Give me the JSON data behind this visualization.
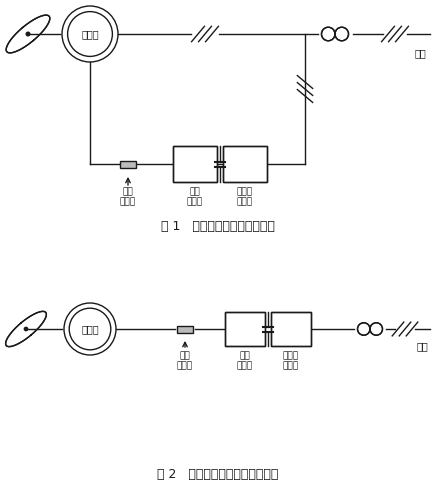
{
  "fig_width": 4.36,
  "fig_height": 5.04,
  "bg_color": "#ffffff",
  "line_color": "#1a1a1a",
  "diagram1_title": "图 1   双馈机组机侧滤波器范围",
  "diagram2_title": "图 2   全功率机组机侧滤波器范围",
  "label_filter": "机侧\n滤波器",
  "label_machine_conv": "机侧\n变流器",
  "label_grid_conv": "电网侧\n变流器",
  "label_generator": "发电机",
  "label_grid": "电网"
}
